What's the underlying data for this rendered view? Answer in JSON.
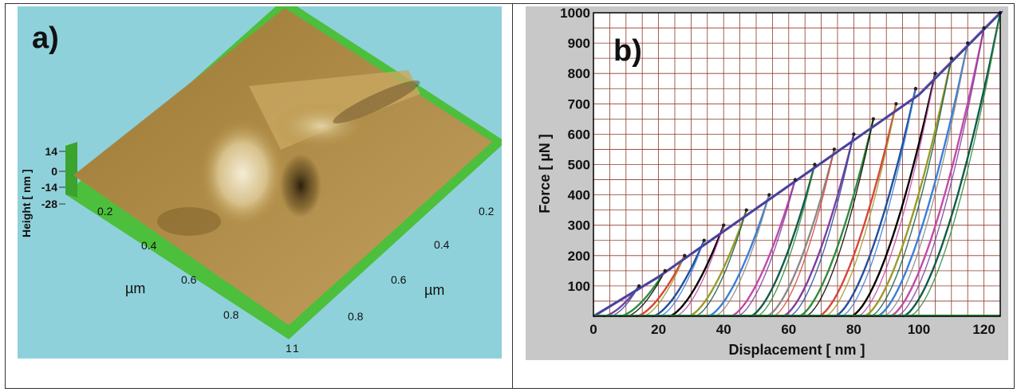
{
  "panel_a": {
    "label": "a)",
    "z_axis_label": "Height [ nm ]",
    "z_ticks": [
      "14",
      "0",
      "-14",
      "-28"
    ],
    "x_unit": "µm",
    "y_unit": "µm",
    "left_ticks": [
      "0.2",
      "0.4",
      "0.6",
      "0.8",
      "1"
    ],
    "right_ticks": [
      "0.2",
      "0.4",
      "0.6",
      "0.8",
      "1"
    ],
    "colors": {
      "background": "#8fd1db",
      "base": "#4cbf3c",
      "surface": "#b08a3c"
    }
  },
  "chart_data": {
    "type": "line",
    "panel_label": "b)",
    "xlabel": "Displacement [ nm ]",
    "ylabel": "Force [ µN ]",
    "xlim": [
      0,
      125
    ],
    "ylim": [
      0,
      1000
    ],
    "x_ticks": [
      "0",
      "20",
      "40",
      "60",
      "80",
      "100",
      "120"
    ],
    "y_ticks": [
      "100",
      "200",
      "300",
      "400",
      "500",
      "600",
      "700",
      "800",
      "900",
      "1000"
    ],
    "grid": true,
    "colors": {
      "background": "#c8c8c8",
      "plot_area": "#ffffff",
      "grid": "#8b3a2a"
    },
    "envelope": [
      [
        0,
        0
      ],
      [
        20,
        130
      ],
      [
        40,
        280
      ],
      [
        60,
        430
      ],
      [
        80,
        580
      ],
      [
        100,
        730
      ],
      [
        125,
        1000
      ]
    ],
    "cycles": [
      {
        "peak_force": 100,
        "peak_disp": 14,
        "residual_disp": 3
      },
      {
        "peak_force": 150,
        "peak_disp": 22,
        "residual_disp": 8
      },
      {
        "peak_force": 200,
        "peak_disp": 28,
        "residual_disp": 13
      },
      {
        "peak_force": 250,
        "peak_disp": 34,
        "residual_disp": 18
      },
      {
        "peak_force": 300,
        "peak_disp": 40,
        "residual_disp": 23
      },
      {
        "peak_force": 350,
        "peak_disp": 47,
        "residual_disp": 29
      },
      {
        "peak_force": 400,
        "peak_disp": 54,
        "residual_disp": 35
      },
      {
        "peak_force": 450,
        "peak_disp": 62,
        "residual_disp": 42
      },
      {
        "peak_force": 500,
        "peak_disp": 68,
        "residual_disp": 48
      },
      {
        "peak_force": 550,
        "peak_disp": 74,
        "residual_disp": 53
      },
      {
        "peak_force": 600,
        "peak_disp": 80,
        "residual_disp": 58
      },
      {
        "peak_force": 650,
        "peak_disp": 86,
        "residual_disp": 63
      },
      {
        "peak_force": 700,
        "peak_disp": 93,
        "residual_disp": 69
      },
      {
        "peak_force": 750,
        "peak_disp": 99,
        "residual_disp": 74
      },
      {
        "peak_force": 800,
        "peak_disp": 105,
        "residual_disp": 79
      },
      {
        "peak_force": 850,
        "peak_disp": 110,
        "residual_disp": 83
      },
      {
        "peak_force": 900,
        "peak_disp": 115,
        "residual_disp": 87
      },
      {
        "peak_force": 950,
        "peak_disp": 120,
        "residual_disp": 91
      },
      {
        "peak_force": 1000,
        "peak_disp": 125,
        "residual_disp": 95
      }
    ],
    "series_colors": [
      "#7b3fa0",
      "#2e8b3e",
      "#d6453a",
      "#1f4e9e",
      "#000000",
      "#9a9a2a",
      "#3a7fd6",
      "#c04aa8",
      "#0d5c4a",
      "#8a8a8a"
    ]
  }
}
